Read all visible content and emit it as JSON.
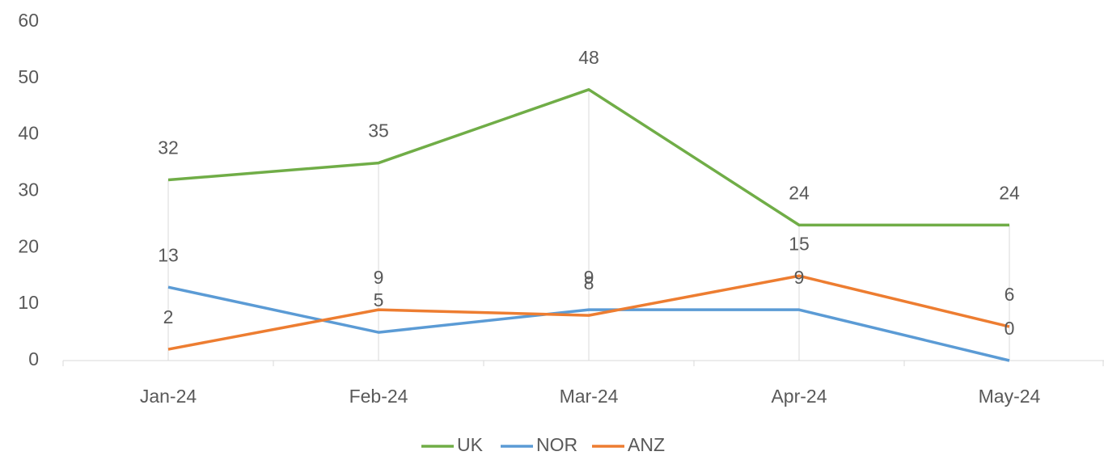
{
  "chart_data": {
    "type": "line",
    "categories": [
      "Jan-24",
      "Feb-24",
      "Mar-24",
      "Apr-24",
      "May-24"
    ],
    "series": [
      {
        "name": "UK",
        "color": "#70ad47",
        "values": [
          32,
          35,
          48,
          24,
          24
        ]
      },
      {
        "name": "NOR",
        "color": "#5b9bd5",
        "values": [
          13,
          5,
          9,
          9,
          0
        ]
      },
      {
        "name": "ANZ",
        "color": "#ed7d31",
        "values": [
          2,
          9,
          8,
          15,
          6
        ]
      }
    ],
    "ylim": [
      0,
      60
    ],
    "yticks": [
      0,
      10,
      20,
      30,
      40,
      50,
      60
    ],
    "grid": false,
    "drop_lines": true,
    "data_labels": true,
    "legend": "bottom"
  }
}
